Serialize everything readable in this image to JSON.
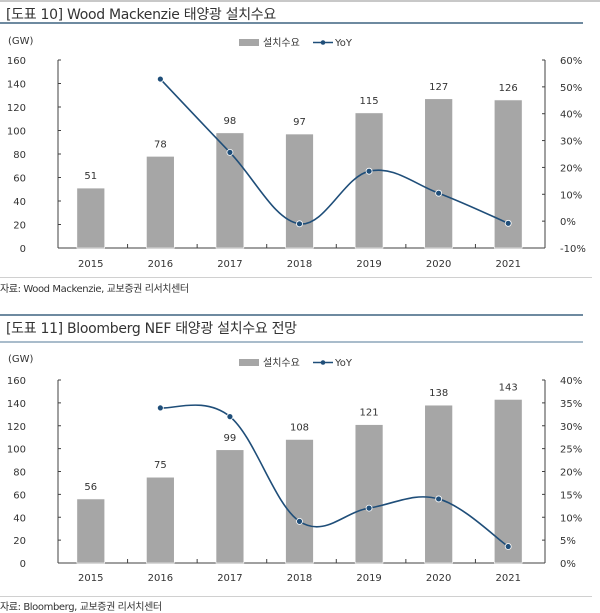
{
  "colors": {
    "bar": "#a6a6a6",
    "line": "#1f4e79",
    "axis": "#404040",
    "rule": "#6e8aa0"
  },
  "chart_data": [
    {
      "type": "bar+line",
      "title": "[도표 10] Wood Mackenzie 태양광 설치수요",
      "unit_label": "(GW)",
      "source": "자료: Wood Mackenzie, 교보증권 리서치센터",
      "categories": [
        "2015",
        "2016",
        "2017",
        "2018",
        "2019",
        "2020",
        "2021"
      ],
      "legend": {
        "bar": "설치수요",
        "line": "YoY",
        "placement": "top-right"
      },
      "series": [
        {
          "name": "설치수요",
          "type": "bar",
          "axis": "left",
          "values": [
            51,
            78,
            98,
            97,
            115,
            127,
            126
          ],
          "labels": [
            "51",
            "78",
            "98",
            "97",
            "115",
            "127",
            "126"
          ]
        },
        {
          "name": "YoY",
          "type": "line",
          "axis": "right",
          "values": [
            null,
            52.9,
            25.6,
            -1.0,
            18.6,
            10.4,
            -0.8
          ]
        }
      ],
      "ylim": [
        0,
        160
      ],
      "yticks": [
        "0",
        "20",
        "40",
        "60",
        "80",
        "100",
        "120",
        "140",
        "160"
      ],
      "y2lim": [
        -10,
        60
      ],
      "y2ticks": [
        "-10%",
        "0%",
        "10%",
        "20%",
        "30%",
        "40%",
        "50%",
        "60%"
      ],
      "grid": false
    },
    {
      "type": "bar+line",
      "title": "[도표 11] Bloomberg NEF 태양광 설치수요 전망",
      "unit_label": "(GW)",
      "source": "자료: Bloomberg, 교보증권 리서치센터",
      "categories": [
        "2015",
        "2016",
        "2017",
        "2018",
        "2019",
        "2020",
        "2021"
      ],
      "legend": {
        "bar": "설치수요",
        "line": "YoY",
        "placement": "top-right"
      },
      "series": [
        {
          "name": "설치수요",
          "type": "bar",
          "axis": "left",
          "values": [
            56,
            75,
            99,
            108,
            121,
            138,
            143
          ],
          "labels": [
            "56",
            "75",
            "99",
            "108",
            "121",
            "138",
            "143"
          ]
        },
        {
          "name": "YoY",
          "type": "line",
          "axis": "right",
          "values": [
            null,
            33.9,
            32.0,
            9.1,
            12.0,
            14.0,
            3.6
          ]
        }
      ],
      "ylim": [
        0,
        160
      ],
      "yticks": [
        "0",
        "20",
        "40",
        "60",
        "80",
        "100",
        "120",
        "140",
        "160"
      ],
      "y2lim": [
        0,
        40
      ],
      "y2ticks": [
        "0%",
        "5%",
        "10%",
        "15%",
        "20%",
        "25%",
        "30%",
        "35%",
        "40%"
      ],
      "grid": false
    }
  ]
}
